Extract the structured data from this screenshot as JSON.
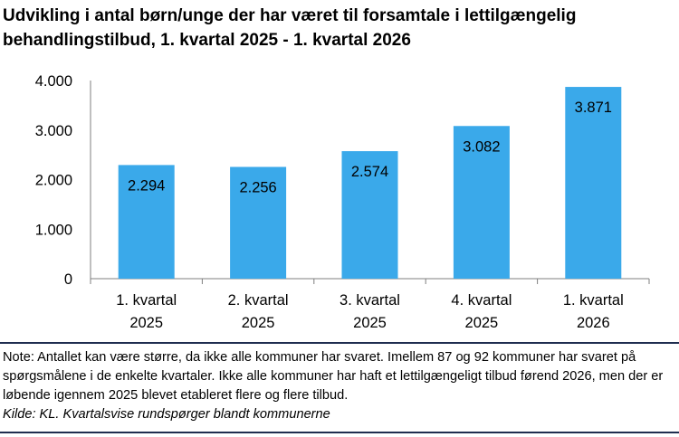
{
  "title": "Udvikling i antal børn/unge der har været til forsamtale i lettilgængelig behandlingstilbud, 1. kvartal 2025 - 1. kvartal 2026",
  "chart_data": {
    "type": "bar",
    "title": "Udvikling i antal børn/unge der har været til forsamtale i lettilgængelig behandlingstilbud, 1. kvartal 2025 - 1. kvartal 2026",
    "categories": [
      [
        "1. kvartal",
        "2025"
      ],
      [
        "2. kvartal",
        "2025"
      ],
      [
        "3. kvartal",
        "2025"
      ],
      [
        "4. kvartal",
        "2025"
      ],
      [
        "1. kvartal",
        "2026"
      ]
    ],
    "values": [
      2294,
      2256,
      2574,
      3082,
      3871
    ],
    "value_labels": [
      "2.294",
      "2.256",
      "2.574",
      "3.082",
      "3.871"
    ],
    "y_ticks": [
      0,
      1000,
      2000,
      3000,
      4000
    ],
    "y_tick_labels": [
      "0",
      "1.000",
      "2.000",
      "3.000",
      "4.000"
    ],
    "ylim": [
      0,
      4000
    ],
    "xlabel": "",
    "ylabel": "",
    "grid": false,
    "legend": "none",
    "bar_color": "#3aa9ea"
  },
  "note": "Note: Antallet kan være større, da ikke alle kommuner har svaret. Imellem 87 og 92 kommuner har svaret på spørgsmålene i de enkelte kvartaler. Ikke alle kommuner har haft et lettilgængeligt tilbud førend 2026, men der er løbende igennem 2025 blevet etableret flere og flere tilbud.",
  "source": "Kilde: KL. Kvartalsvise rundspørger blandt kommunerne",
  "colors": {
    "rule": "#1f2d4f",
    "bar": "#3aa9ea"
  }
}
